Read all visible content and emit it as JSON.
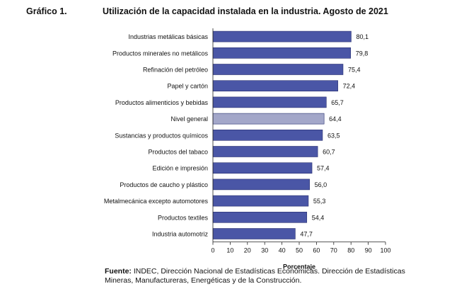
{
  "figure_label": "Gráfico 1.",
  "source": {
    "label": "Fuente:",
    "text": "INDEC, Dirección Nacional de Estadísticas Económicas. Dirección de Estadísticas Mineras, Manufactureras, Energéticas y de la Construcción."
  },
  "colors": {
    "bar": "#4a56a6",
    "highlight_bar": "#a3a7c9",
    "bar_border": "#2a3170"
  },
  "chart_data": {
    "type": "bar",
    "orientation": "horizontal",
    "title": "Utilización de la capacidad instalada en la industria. Agosto de 2021",
    "xlabel": "Porcentaje",
    "ylabel": "",
    "xlim": [
      0,
      100
    ],
    "xticks": [
      0,
      10,
      20,
      30,
      40,
      50,
      60,
      70,
      80,
      90,
      100
    ],
    "categories": [
      "Industrias metálicas básicas",
      "Productos minerales no metálicos",
      "Refinación del petróleo",
      "Papel y cartón",
      "Productos alimenticios y bebidas",
      "Nivel general",
      "Sustancias y productos químicos",
      "Productos del tabaco",
      "Edición e impresión",
      "Productos de caucho y plástico",
      "Metalmecánica excepto automotores",
      "Productos textiles",
      "Industria automotriz"
    ],
    "values": [
      80.1,
      79.8,
      75.4,
      72.4,
      65.7,
      64.4,
      63.5,
      60.7,
      57.4,
      56.0,
      55.3,
      54.4,
      47.7
    ],
    "value_labels": [
      "80,1",
      "79,8",
      "75,4",
      "72,4",
      "65,7",
      "64,4",
      "63,5",
      "60,7",
      "57,4",
      "56,0",
      "55,3",
      "54,4",
      "47,7"
    ],
    "highlight": "Nivel general",
    "grid": false,
    "legend": "none"
  }
}
